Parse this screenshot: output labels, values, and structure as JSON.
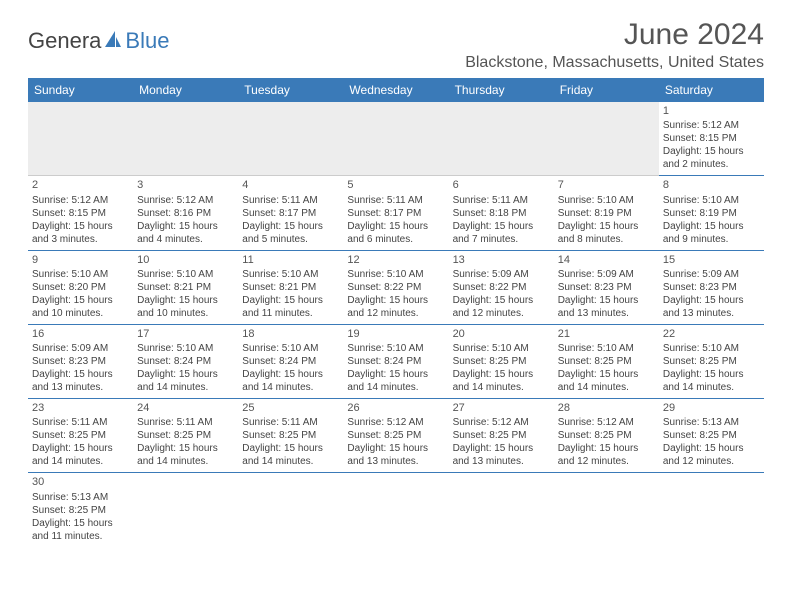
{
  "logo": {
    "main": "Genera",
    "sub": "Blue",
    "icon_color": "#3a7ab8"
  },
  "title": "June 2024",
  "location": "Blackstone, Massachusetts, United States",
  "colors": {
    "header_bg": "#3a7ab8",
    "header_fg": "#ffffff",
    "row_divider": "#3a7ab8",
    "empty_row_bg": "#ededed",
    "text": "#444444"
  },
  "day_headers": [
    "Sunday",
    "Monday",
    "Tuesday",
    "Wednesday",
    "Thursday",
    "Friday",
    "Saturday"
  ],
  "first_weekday": 6,
  "days_in_month": 30,
  "days": {
    "1": {
      "sunrise": "5:12 AM",
      "sunset": "8:15 PM",
      "daylight": "15 hours and 2 minutes."
    },
    "2": {
      "sunrise": "5:12 AM",
      "sunset": "8:15 PM",
      "daylight": "15 hours and 3 minutes."
    },
    "3": {
      "sunrise": "5:12 AM",
      "sunset": "8:16 PM",
      "daylight": "15 hours and 4 minutes."
    },
    "4": {
      "sunrise": "5:11 AM",
      "sunset": "8:17 PM",
      "daylight": "15 hours and 5 minutes."
    },
    "5": {
      "sunrise": "5:11 AM",
      "sunset": "8:17 PM",
      "daylight": "15 hours and 6 minutes."
    },
    "6": {
      "sunrise": "5:11 AM",
      "sunset": "8:18 PM",
      "daylight": "15 hours and 7 minutes."
    },
    "7": {
      "sunrise": "5:10 AM",
      "sunset": "8:19 PM",
      "daylight": "15 hours and 8 minutes."
    },
    "8": {
      "sunrise": "5:10 AM",
      "sunset": "8:19 PM",
      "daylight": "15 hours and 9 minutes."
    },
    "9": {
      "sunrise": "5:10 AM",
      "sunset": "8:20 PM",
      "daylight": "15 hours and 10 minutes."
    },
    "10": {
      "sunrise": "5:10 AM",
      "sunset": "8:21 PM",
      "daylight": "15 hours and 10 minutes."
    },
    "11": {
      "sunrise": "5:10 AM",
      "sunset": "8:21 PM",
      "daylight": "15 hours and 11 minutes."
    },
    "12": {
      "sunrise": "5:10 AM",
      "sunset": "8:22 PM",
      "daylight": "15 hours and 12 minutes."
    },
    "13": {
      "sunrise": "5:09 AM",
      "sunset": "8:22 PM",
      "daylight": "15 hours and 12 minutes."
    },
    "14": {
      "sunrise": "5:09 AM",
      "sunset": "8:23 PM",
      "daylight": "15 hours and 13 minutes."
    },
    "15": {
      "sunrise": "5:09 AM",
      "sunset": "8:23 PM",
      "daylight": "15 hours and 13 minutes."
    },
    "16": {
      "sunrise": "5:09 AM",
      "sunset": "8:23 PM",
      "daylight": "15 hours and 13 minutes."
    },
    "17": {
      "sunrise": "5:10 AM",
      "sunset": "8:24 PM",
      "daylight": "15 hours and 14 minutes."
    },
    "18": {
      "sunrise": "5:10 AM",
      "sunset": "8:24 PM",
      "daylight": "15 hours and 14 minutes."
    },
    "19": {
      "sunrise": "5:10 AM",
      "sunset": "8:24 PM",
      "daylight": "15 hours and 14 minutes."
    },
    "20": {
      "sunrise": "5:10 AM",
      "sunset": "8:25 PM",
      "daylight": "15 hours and 14 minutes."
    },
    "21": {
      "sunrise": "5:10 AM",
      "sunset": "8:25 PM",
      "daylight": "15 hours and 14 minutes."
    },
    "22": {
      "sunrise": "5:10 AM",
      "sunset": "8:25 PM",
      "daylight": "15 hours and 14 minutes."
    },
    "23": {
      "sunrise": "5:11 AM",
      "sunset": "8:25 PM",
      "daylight": "15 hours and 14 minutes."
    },
    "24": {
      "sunrise": "5:11 AM",
      "sunset": "8:25 PM",
      "daylight": "15 hours and 14 minutes."
    },
    "25": {
      "sunrise": "5:11 AM",
      "sunset": "8:25 PM",
      "daylight": "15 hours and 14 minutes."
    },
    "26": {
      "sunrise": "5:12 AM",
      "sunset": "8:25 PM",
      "daylight": "15 hours and 13 minutes."
    },
    "27": {
      "sunrise": "5:12 AM",
      "sunset": "8:25 PM",
      "daylight": "15 hours and 13 minutes."
    },
    "28": {
      "sunrise": "5:12 AM",
      "sunset": "8:25 PM",
      "daylight": "15 hours and 12 minutes."
    },
    "29": {
      "sunrise": "5:13 AM",
      "sunset": "8:25 PM",
      "daylight": "15 hours and 12 minutes."
    },
    "30": {
      "sunrise": "5:13 AM",
      "sunset": "8:25 PM",
      "daylight": "15 hours and 11 minutes."
    }
  },
  "labels": {
    "sunrise": "Sunrise:",
    "sunset": "Sunset:",
    "daylight": "Daylight:"
  }
}
